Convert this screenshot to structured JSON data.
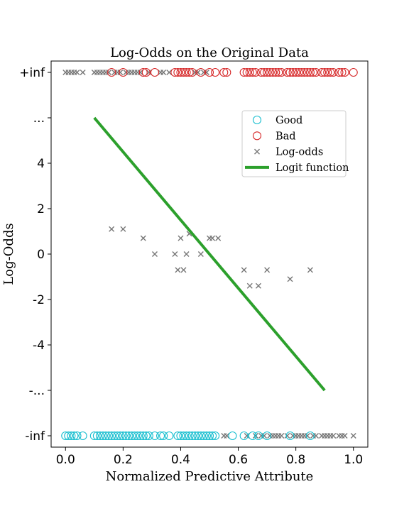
{
  "chart_data": {
    "type": "scatter",
    "title": "Log-Odds on the Original Data",
    "xlabel": "Normalized Predictive Attribute",
    "ylabel": "Log-Odds",
    "xlim": [
      -0.05,
      1.05
    ],
    "ylim": [
      -8.5,
      8.5
    ],
    "grid": false,
    "legend_placement": "upper-right",
    "x_ticks": [
      {
        "value": 0.0,
        "label": "0.0"
      },
      {
        "value": 0.2,
        "label": "0.2"
      },
      {
        "value": 0.4,
        "label": "0.4"
      },
      {
        "value": 0.6,
        "label": "0.6"
      },
      {
        "value": 0.8,
        "label": "0.8"
      },
      {
        "value": 1.0,
        "label": "1.0"
      }
    ],
    "y_ticks": [
      {
        "value": -8,
        "label": "-inf"
      },
      {
        "value": -6,
        "label": "-..."
      },
      {
        "value": -4,
        "label": "-4"
      },
      {
        "value": -2,
        "label": "-2"
      },
      {
        "value": 0,
        "label": "0"
      },
      {
        "value": 2,
        "label": "2"
      },
      {
        "value": 4,
        "label": "4"
      },
      {
        "value": 6,
        "label": "..."
      },
      {
        "value": 8,
        "label": "+inf"
      }
    ],
    "series": [
      {
        "name": "Good",
        "kind": "scatter-open-circle",
        "color": "#17becf",
        "y": -8,
        "x": [
          0.0,
          0.01,
          0.02,
          0.03,
          0.04,
          0.06,
          0.1,
          0.11,
          0.12,
          0.13,
          0.14,
          0.15,
          0.16,
          0.17,
          0.18,
          0.19,
          0.2,
          0.21,
          0.22,
          0.23,
          0.24,
          0.25,
          0.26,
          0.27,
          0.28,
          0.29,
          0.31,
          0.33,
          0.34,
          0.36,
          0.39,
          0.4,
          0.41,
          0.42,
          0.43,
          0.44,
          0.45,
          0.46,
          0.47,
          0.48,
          0.49,
          0.5,
          0.51,
          0.52,
          0.58,
          0.62,
          0.65,
          0.67,
          0.7,
          0.78,
          0.85
        ]
      },
      {
        "name": "Bad",
        "kind": "scatter-open-circle",
        "color": "#d62728",
        "y": 8,
        "x": [
          0.16,
          0.2,
          0.27,
          0.28,
          0.31,
          0.38,
          0.39,
          0.4,
          0.41,
          0.42,
          0.43,
          0.44,
          0.47,
          0.5,
          0.52,
          0.55,
          0.56,
          0.62,
          0.63,
          0.64,
          0.65,
          0.66,
          0.68,
          0.69,
          0.7,
          0.71,
          0.72,
          0.73,
          0.74,
          0.75,
          0.77,
          0.78,
          0.79,
          0.8,
          0.81,
          0.82,
          0.83,
          0.84,
          0.85,
          0.86,
          0.87,
          0.89,
          0.9,
          0.91,
          0.92,
          0.93,
          0.95,
          0.96,
          0.97,
          1.0
        ]
      },
      {
        "name": "Log-odds",
        "kind": "scatter-x",
        "color": "#777777",
        "points": [
          [
            0.16,
            1.1
          ],
          [
            0.2,
            1.1
          ],
          [
            0.27,
            0.7
          ],
          [
            0.31,
            0.0
          ],
          [
            0.38,
            0.0
          ],
          [
            0.39,
            -0.7
          ],
          [
            0.4,
            0.7
          ],
          [
            0.41,
            -0.7
          ],
          [
            0.42,
            0.0
          ],
          [
            0.43,
            0.9
          ],
          [
            0.47,
            0.0
          ],
          [
            0.5,
            0.7
          ],
          [
            0.51,
            0.7
          ],
          [
            0.53,
            0.7
          ],
          [
            0.62,
            -0.7
          ],
          [
            0.64,
            -1.4
          ],
          [
            0.67,
            -1.4
          ],
          [
            0.7,
            -0.7
          ],
          [
            0.78,
            -1.1
          ],
          [
            0.85,
            -0.7
          ]
        ],
        "top_x": [
          0.0,
          0.01,
          0.02,
          0.03,
          0.04,
          0.06,
          0.1,
          0.11,
          0.12,
          0.13,
          0.14,
          0.15,
          0.17,
          0.18,
          0.19,
          0.21,
          0.22,
          0.23,
          0.24,
          0.25,
          0.26,
          0.29,
          0.33,
          0.34,
          0.36,
          0.45,
          0.46,
          0.48,
          0.49
        ],
        "top_y": 8,
        "bottom_x": [
          0.55,
          0.56,
          0.63,
          0.66,
          0.68,
          0.69,
          0.71,
          0.72,
          0.73,
          0.74,
          0.75,
          0.77,
          0.79,
          0.8,
          0.81,
          0.82,
          0.83,
          0.84,
          0.86,
          0.87,
          0.89,
          0.9,
          0.91,
          0.92,
          0.93,
          0.95,
          0.96,
          0.97,
          1.0
        ],
        "bottom_y": -8
      },
      {
        "name": "Logit function",
        "kind": "line",
        "color": "#2ca02c",
        "x": [
          0.1,
          0.9
        ],
        "y": [
          6.0,
          -6.0
        ]
      }
    ]
  }
}
